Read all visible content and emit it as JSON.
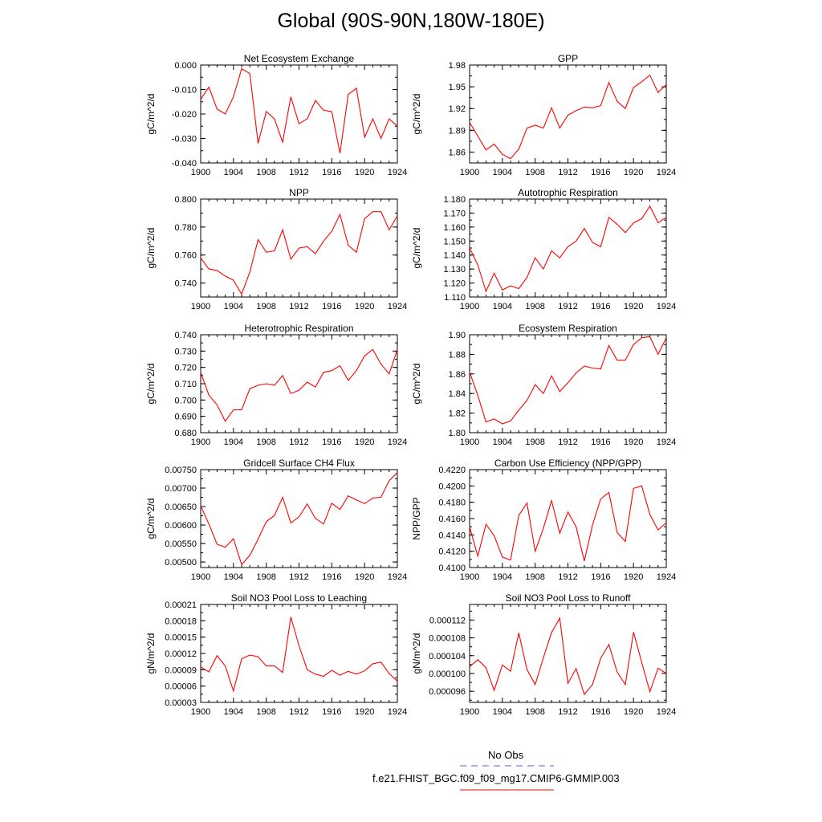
{
  "title": "Global (90S-90N,180W-180E)",
  "colors": {
    "model": "#ff0000",
    "obs": "#5555ff",
    "axis": "#000000"
  },
  "legend": {
    "obs_label": "No Obs",
    "model_label": "f.e21.FHIST_BGC.f09_f09_mg17.CMIP6-GMMIP.003"
  },
  "chart_data": [
    {
      "type": "line",
      "title": "Net Ecosystem Exchange",
      "ylabel": "gC/m^2/d",
      "xlim": [
        1900,
        1924
      ],
      "xticks": [
        "1900",
        "1904",
        "1908",
        "1912",
        "1916",
        "1920",
        "1924"
      ],
      "ylim": [
        -0.04,
        0.0
      ],
      "yticks": [
        "0.000",
        "-0.010",
        "-0.020",
        "-0.030",
        "-0.040"
      ],
      "ytick_values": [
        0.0,
        -0.01,
        -0.02,
        -0.03,
        -0.04
      ],
      "x": [
        1900,
        1901,
        1902,
        1903,
        1904,
        1905,
        1906,
        1907,
        1908,
        1909,
        1910,
        1911,
        1912,
        1913,
        1914,
        1915,
        1916,
        1917,
        1918,
        1919,
        1920,
        1921,
        1922,
        1923,
        1924
      ],
      "values": [
        -0.014,
        -0.009,
        -0.018,
        -0.02,
        -0.013,
        -0.0015,
        -0.0035,
        -0.032,
        -0.019,
        -0.022,
        -0.0315,
        -0.013,
        -0.024,
        -0.022,
        -0.0145,
        -0.0185,
        -0.019,
        -0.036,
        -0.012,
        -0.0095,
        -0.0295,
        -0.022,
        -0.03,
        -0.022,
        -0.025
      ]
    },
    {
      "type": "line",
      "title": "GPP",
      "ylabel": "gC/m^2/d",
      "xlim": [
        1900,
        1924
      ],
      "xticks": [
        "1900",
        "1904",
        "1908",
        "1912",
        "1916",
        "1920",
        "1924"
      ],
      "ylim": [
        1.845,
        1.98
      ],
      "yticks": [
        "1.98",
        "1.95",
        "1.92",
        "1.89",
        "1.86"
      ],
      "ytick_values": [
        1.98,
        1.95,
        1.92,
        1.89,
        1.86
      ],
      "x": [
        1900,
        1901,
        1902,
        1903,
        1904,
        1905,
        1906,
        1907,
        1908,
        1909,
        1910,
        1911,
        1912,
        1913,
        1914,
        1915,
        1916,
        1917,
        1918,
        1919,
        1920,
        1921,
        1922,
        1923,
        1924
      ],
      "values": [
        1.901,
        1.882,
        1.863,
        1.871,
        1.857,
        1.851,
        1.864,
        1.893,
        1.897,
        1.893,
        1.921,
        1.893,
        1.911,
        1.917,
        1.922,
        1.921,
        1.924,
        1.956,
        1.93,
        1.92,
        1.949,
        1.957,
        1.966,
        1.942,
        1.953
      ]
    },
    {
      "type": "line",
      "title": "NPP",
      "ylabel": "gC/m^2/d",
      "xlim": [
        1900,
        1924
      ],
      "xticks": [
        "1900",
        "1904",
        "1908",
        "1912",
        "1916",
        "1920",
        "1924"
      ],
      "ylim": [
        0.73,
        0.8
      ],
      "yticks": [
        "0.800",
        "0.780",
        "0.760",
        "0.740"
      ],
      "ytick_values": [
        0.8,
        0.78,
        0.76,
        0.74
      ],
      "x": [
        1900,
        1901,
        1902,
        1903,
        1904,
        1905,
        1906,
        1907,
        1908,
        1909,
        1910,
        1911,
        1912,
        1913,
        1914,
        1915,
        1916,
        1917,
        1918,
        1919,
        1920,
        1921,
        1922,
        1923,
        1924
      ],
      "values": [
        0.758,
        0.75,
        0.749,
        0.745,
        0.742,
        0.732,
        0.748,
        0.771,
        0.762,
        0.763,
        0.778,
        0.757,
        0.765,
        0.766,
        0.761,
        0.77,
        0.777,
        0.789,
        0.767,
        0.762,
        0.786,
        0.791,
        0.791,
        0.778,
        0.788
      ]
    },
    {
      "type": "line",
      "title": "Autotrophic Respiration",
      "ylabel": "gC/m^2/d",
      "xlim": [
        1900,
        1924
      ],
      "xticks": [
        "1900",
        "1904",
        "1908",
        "1912",
        "1916",
        "1920",
        "1924"
      ],
      "ylim": [
        1.11,
        1.18
      ],
      "yticks": [
        "1.180",
        "1.170",
        "1.160",
        "1.150",
        "1.140",
        "1.130",
        "1.120",
        "1.110"
      ],
      "ytick_values": [
        1.18,
        1.17,
        1.16,
        1.15,
        1.14,
        1.13,
        1.12,
        1.11
      ],
      "x": [
        1900,
        1901,
        1902,
        1903,
        1904,
        1905,
        1906,
        1907,
        1908,
        1909,
        1910,
        1911,
        1912,
        1913,
        1914,
        1915,
        1916,
        1917,
        1918,
        1919,
        1920,
        1921,
        1922,
        1923,
        1924
      ],
      "values": [
        1.145,
        1.133,
        1.114,
        1.127,
        1.115,
        1.118,
        1.116,
        1.124,
        1.138,
        1.13,
        1.143,
        1.138,
        1.146,
        1.15,
        1.159,
        1.149,
        1.146,
        1.167,
        1.162,
        1.156,
        1.163,
        1.166,
        1.175,
        1.163,
        1.167
      ]
    },
    {
      "type": "line",
      "title": "Heterotrophic Respiration",
      "ylabel": "gC/m^2/d",
      "xlim": [
        1900,
        1924
      ],
      "xticks": [
        "1900",
        "1904",
        "1908",
        "1912",
        "1916",
        "1920",
        "1924"
      ],
      "ylim": [
        0.68,
        0.74
      ],
      "yticks": [
        "0.740",
        "0.730",
        "0.720",
        "0.710",
        "0.700",
        "0.690",
        "0.680"
      ],
      "ytick_values": [
        0.74,
        0.73,
        0.72,
        0.71,
        0.7,
        0.69,
        0.68
      ],
      "x": [
        1900,
        1901,
        1902,
        1903,
        1904,
        1905,
        1906,
        1907,
        1908,
        1909,
        1910,
        1911,
        1912,
        1913,
        1914,
        1915,
        1916,
        1917,
        1918,
        1919,
        1920,
        1921,
        1922,
        1923,
        1924
      ],
      "values": [
        0.717,
        0.703,
        0.697,
        0.687,
        0.694,
        0.694,
        0.707,
        0.709,
        0.71,
        0.709,
        0.715,
        0.704,
        0.706,
        0.711,
        0.708,
        0.717,
        0.718,
        0.721,
        0.712,
        0.718,
        0.727,
        0.731,
        0.722,
        0.716,
        0.731
      ]
    },
    {
      "type": "line",
      "title": "Ecosystem Respiration",
      "ylabel": "gC/m^2/d",
      "xlim": [
        1900,
        1924
      ],
      "xticks": [
        "1900",
        "1904",
        "1908",
        "1912",
        "1916",
        "1920",
        "1924"
      ],
      "ylim": [
        1.8,
        1.9
      ],
      "yticks": [
        "1.90",
        "1.88",
        "1.86",
        "1.84",
        "1.82",
        "1.80"
      ],
      "ytick_values": [
        1.9,
        1.88,
        1.86,
        1.84,
        1.82,
        1.8
      ],
      "x": [
        1900,
        1901,
        1902,
        1903,
        1904,
        1905,
        1906,
        1907,
        1908,
        1909,
        1910,
        1911,
        1912,
        1913,
        1914,
        1915,
        1916,
        1917,
        1918,
        1919,
        1920,
        1921,
        1922,
        1923,
        1924
      ],
      "values": [
        1.862,
        1.838,
        1.811,
        1.814,
        1.809,
        1.812,
        1.823,
        1.833,
        1.849,
        1.84,
        1.858,
        1.842,
        1.851,
        1.861,
        1.868,
        1.866,
        1.865,
        1.889,
        1.874,
        1.874,
        1.89,
        1.897,
        1.898,
        1.88,
        1.897
      ]
    },
    {
      "type": "line",
      "title": "Gridcell Surface CH4 Flux",
      "ylabel": "gC/m^2/d",
      "xlim": [
        1900,
        1924
      ],
      "xticks": [
        "1900",
        "1904",
        "1908",
        "1912",
        "1916",
        "1920",
        "1924"
      ],
      "ylim": [
        0.00485,
        0.0075
      ],
      "yticks": [
        "0.00750",
        "0.00700",
        "0.00650",
        "0.00600",
        "0.00550",
        "0.00500"
      ],
      "ytick_values": [
        0.0075,
        0.007,
        0.0065,
        0.006,
        0.0055,
        0.005
      ],
      "x": [
        1900,
        1901,
        1902,
        1903,
        1904,
        1905,
        1906,
        1907,
        1908,
        1909,
        1910,
        1911,
        1912,
        1913,
        1914,
        1915,
        1916,
        1917,
        1918,
        1919,
        1920,
        1921,
        1922,
        1923,
        1924
      ],
      "values": [
        0.00652,
        0.00603,
        0.00548,
        0.0054,
        0.00563,
        0.00493,
        0.00518,
        0.00562,
        0.00609,
        0.00626,
        0.00675,
        0.00606,
        0.00622,
        0.00657,
        0.00618,
        0.00603,
        0.00659,
        0.00642,
        0.00679,
        0.00668,
        0.00658,
        0.00673,
        0.00675,
        0.0072,
        0.00742
      ]
    },
    {
      "type": "line",
      "title": "Carbon Use Efficiency (NPP/GPP)",
      "ylabel": "NPP/GPP",
      "xlim": [
        1900,
        1924
      ],
      "xticks": [
        "1900",
        "1904",
        "1908",
        "1912",
        "1916",
        "1920",
        "1924"
      ],
      "ylim": [
        0.41,
        0.422
      ],
      "yticks": [
        "0.4220",
        "0.4200",
        "0.4180",
        "0.4160",
        "0.4140",
        "0.4120",
        "0.4100"
      ],
      "ytick_values": [
        0.422,
        0.42,
        0.418,
        0.416,
        0.414,
        0.412,
        0.41
      ],
      "x": [
        1900,
        1901,
        1902,
        1903,
        1904,
        1905,
        1906,
        1907,
        1908,
        1909,
        1910,
        1911,
        1912,
        1913,
        1914,
        1915,
        1916,
        1917,
        1918,
        1919,
        1920,
        1921,
        1922,
        1923,
        1924
      ],
      "values": [
        0.415,
        0.4114,
        0.4153,
        0.4139,
        0.4113,
        0.4109,
        0.4164,
        0.4179,
        0.412,
        0.4148,
        0.4182,
        0.4142,
        0.4168,
        0.415,
        0.4108,
        0.4152,
        0.4184,
        0.4192,
        0.4143,
        0.4132,
        0.4197,
        0.42,
        0.4165,
        0.4146,
        0.4155
      ]
    },
    {
      "type": "line",
      "title": "Soil NO3 Pool Loss to Leaching",
      "ylabel": "gN/m^2/d",
      "xlim": [
        1900,
        1924
      ],
      "xticks": [
        "1900",
        "1904",
        "1908",
        "1912",
        "1916",
        "1920",
        "1924"
      ],
      "ylim": [
        3e-05,
        0.00021
      ],
      "yticks": [
        "0.00021",
        "0.00018",
        "0.00015",
        "0.00012",
        "0.00009",
        "0.00006",
        "0.00003"
      ],
      "ytick_values": [
        0.00021,
        0.00018,
        0.00015,
        0.00012,
        9e-05,
        6e-05,
        3e-05
      ],
      "x": [
        1900,
        1901,
        1902,
        1903,
        1904,
        1905,
        1906,
        1907,
        1908,
        1909,
        1910,
        1911,
        1912,
        1913,
        1914,
        1915,
        1916,
        1917,
        1918,
        1919,
        1920,
        1921,
        1922,
        1923,
        1924
      ],
      "values": [
        9.5e-05,
        8.6e-05,
        0.000116,
        9.7e-05,
        5.1e-05,
        0.00011,
        0.000117,
        0.000114,
        9.7e-05,
        9.7e-05,
        8.5e-05,
        0.000187,
        0.000134,
        9e-05,
        8.2e-05,
        7.8e-05,
        8.9e-05,
        8e-05,
        8.7e-05,
        8.2e-05,
        8.8e-05,
        0.000101,
        0.000104,
        8.3e-05,
        6.9e-05
      ]
    },
    {
      "type": "line",
      "title": "Soil NO3 Pool Loss to Runoff",
      "ylabel": "gN/m^2/d",
      "xlim": [
        1900,
        1924
      ],
      "xticks": [
        "1900",
        "1904",
        "1908",
        "1912",
        "1916",
        "1920",
        "1924"
      ],
      "ylim": [
        9.35e-05,
        0.0001155
      ],
      "yticks": [
        "0.000112",
        "0.000108",
        "0.000104",
        "0.000100",
        "0.000096"
      ],
      "ytick_values": [
        0.000112,
        0.000108,
        0.000104,
        0.0001,
        9.6e-05
      ],
      "x": [
        1900,
        1901,
        1902,
        1903,
        1904,
        1905,
        1906,
        1907,
        1908,
        1909,
        1910,
        1911,
        1912,
        1913,
        1914,
        1915,
        1916,
        1917,
        1918,
        1919,
        1920,
        1921,
        1922,
        1923,
        1924
      ],
      "values": [
        0.0001015,
        0.0001031,
        0.0001013,
        9.62e-05,
        0.0001019,
        0.0001005,
        0.0001091,
        0.0001009,
        9.75e-05,
        0.0001035,
        0.0001092,
        0.0001124,
        9.78e-05,
        0.0001011,
        9.53e-05,
        9.75e-05,
        0.0001034,
        0.0001065,
        0.0001003,
        9.75e-05,
        0.0001093,
        0.0001025,
        9.59e-05,
        0.0001012,
        0.0001
      ]
    }
  ]
}
